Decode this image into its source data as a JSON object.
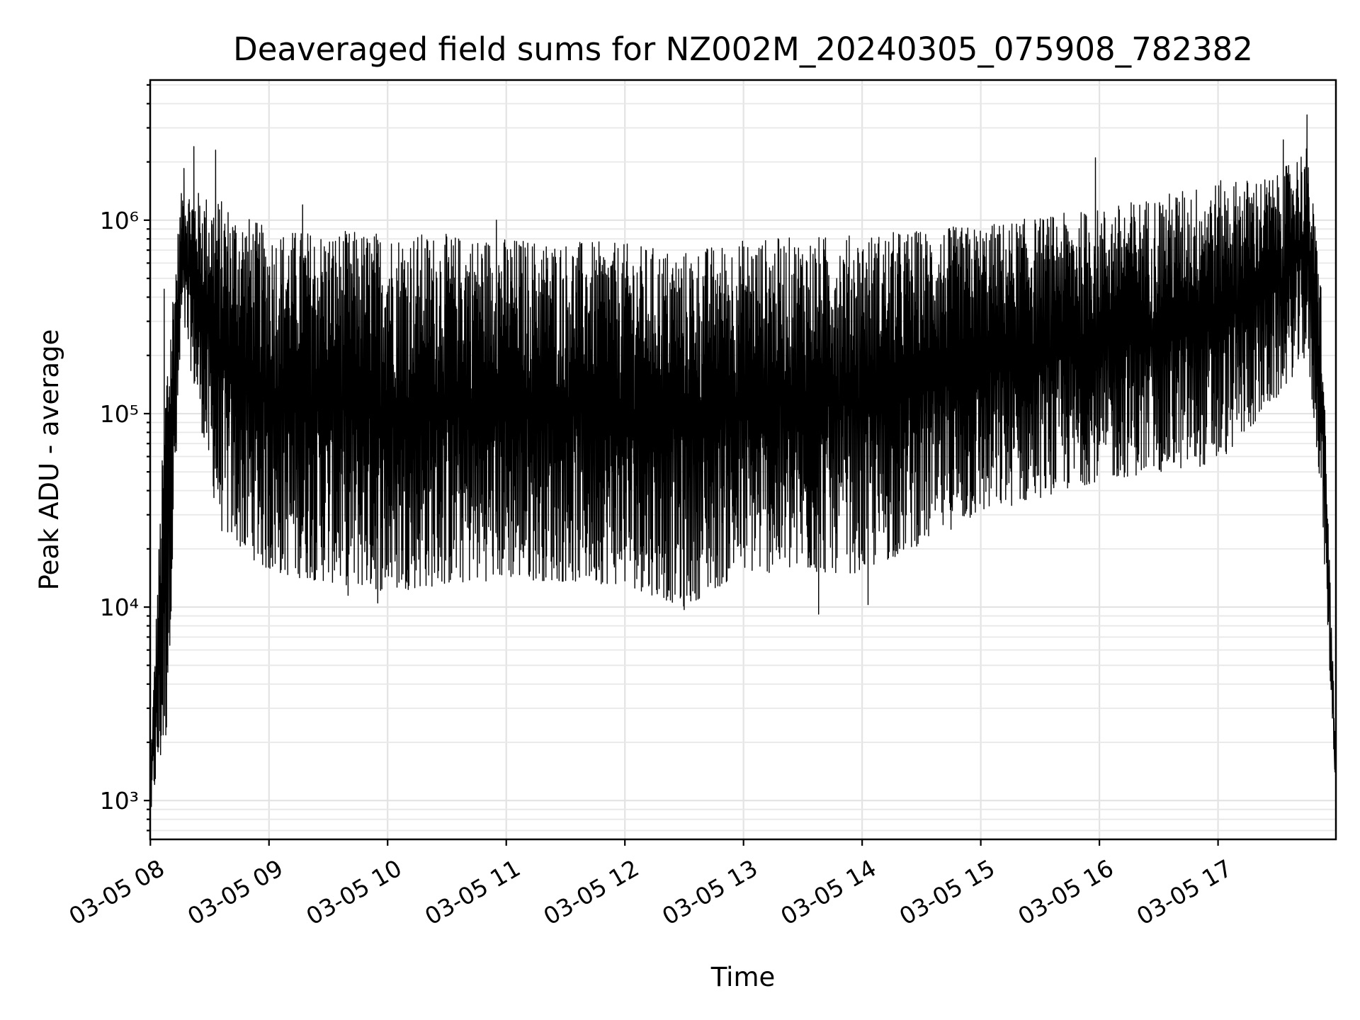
{
  "chart_data": {
    "type": "line",
    "title": "Deaveraged field sums for NZ002M_20240305_075908_782382",
    "xlabel": "Time",
    "ylabel": "Peak ADU - average",
    "yscale": "log",
    "grid": true,
    "xlim": [
      "2024-03-05T07:59:54",
      "2024-03-05T17:59:37"
    ],
    "ylim": [
      630,
      5300000
    ],
    "xticks": [
      "2024-03-05T08:00",
      "2024-03-05T09:00",
      "2024-03-05T10:00",
      "2024-03-05T11:00",
      "2024-03-05T12:00",
      "2024-03-05T13:00",
      "2024-03-05T14:00",
      "2024-03-05T15:00",
      "2024-03-05T16:00",
      "2024-03-05T17:00"
    ],
    "xtick_labels": [
      "03-05 08",
      "03-05 09",
      "03-05 10",
      "03-05 11",
      "03-05 12",
      "03-05 13",
      "03-05 14",
      "03-05 15",
      "03-05 16",
      "03-05 17"
    ],
    "yticks": [
      1000,
      10000,
      100000,
      1000000
    ],
    "ytick_labels": [
      "10³",
      "10⁴",
      "10⁵",
      "10⁶"
    ],
    "series": [
      {
        "color": "#000000",
        "envelope": {
          "time": [
            "2024-03-05T08:00",
            "2024-03-05T08:08",
            "2024-03-05T08:16",
            "2024-03-05T08:35",
            "2024-03-05T09:00",
            "2024-03-05T10:00",
            "2024-03-05T11:00",
            "2024-03-05T12:00",
            "2024-03-05T12:30",
            "2024-03-05T13:00",
            "2024-03-05T14:00",
            "2024-03-05T15:00",
            "2024-03-05T16:00",
            "2024-03-05T17:00",
            "2024-03-05T17:30",
            "2024-03-05T17:45",
            "2024-03-05T17:52",
            "2024-03-05T17:59"
          ],
          "upper": [
            1500,
            200000,
            1500000,
            1300000,
            900000,
            880000,
            820000,
            760000,
            700000,
            800000,
            850000,
            950000,
            1150000,
            1600000,
            1700000,
            2500000,
            500000,
            2500
          ],
          "lower": [
            900,
            2000,
            300000,
            25000,
            15000,
            12000,
            14000,
            13000,
            10000,
            15000,
            15000,
            30000,
            45000,
            55000,
            120000,
            200000,
            40000,
            1400
          ]
        },
        "samples": [
          {
            "time": "2024-03-05T08:00:30",
            "value": 930
          },
          {
            "time": "2024-03-05T08:07:00",
            "value": 440000
          },
          {
            "time": "2024-03-05T08:17:00",
            "value": 1850000
          },
          {
            "time": "2024-03-05T08:22:00",
            "value": 2400000
          },
          {
            "time": "2024-03-05T08:33:00",
            "value": 2300000
          },
          {
            "time": "2024-03-05T08:42:00",
            "value": 48000
          },
          {
            "time": "2024-03-05T08:48:00",
            "value": 21000
          },
          {
            "time": "2024-03-05T09:17:00",
            "value": 1200000
          },
          {
            "time": "2024-03-05T09:40:00",
            "value": 11500
          },
          {
            "time": "2024-03-05T09:55:00",
            "value": 10500
          },
          {
            "time": "2024-03-05T10:55:00",
            "value": 1000000
          },
          {
            "time": "2024-03-05T12:30:00",
            "value": 9700
          },
          {
            "time": "2024-03-05T13:38:00",
            "value": 9200
          },
          {
            "time": "2024-03-05T14:03:00",
            "value": 10300
          },
          {
            "time": "2024-03-05T15:58:00",
            "value": 2100000
          },
          {
            "time": "2024-03-05T17:33:00",
            "value": 2600000
          },
          {
            "time": "2024-03-05T17:45:00",
            "value": 3500000
          },
          {
            "time": "2024-03-05T17:59:00",
            "value": 1450
          }
        ]
      }
    ]
  }
}
